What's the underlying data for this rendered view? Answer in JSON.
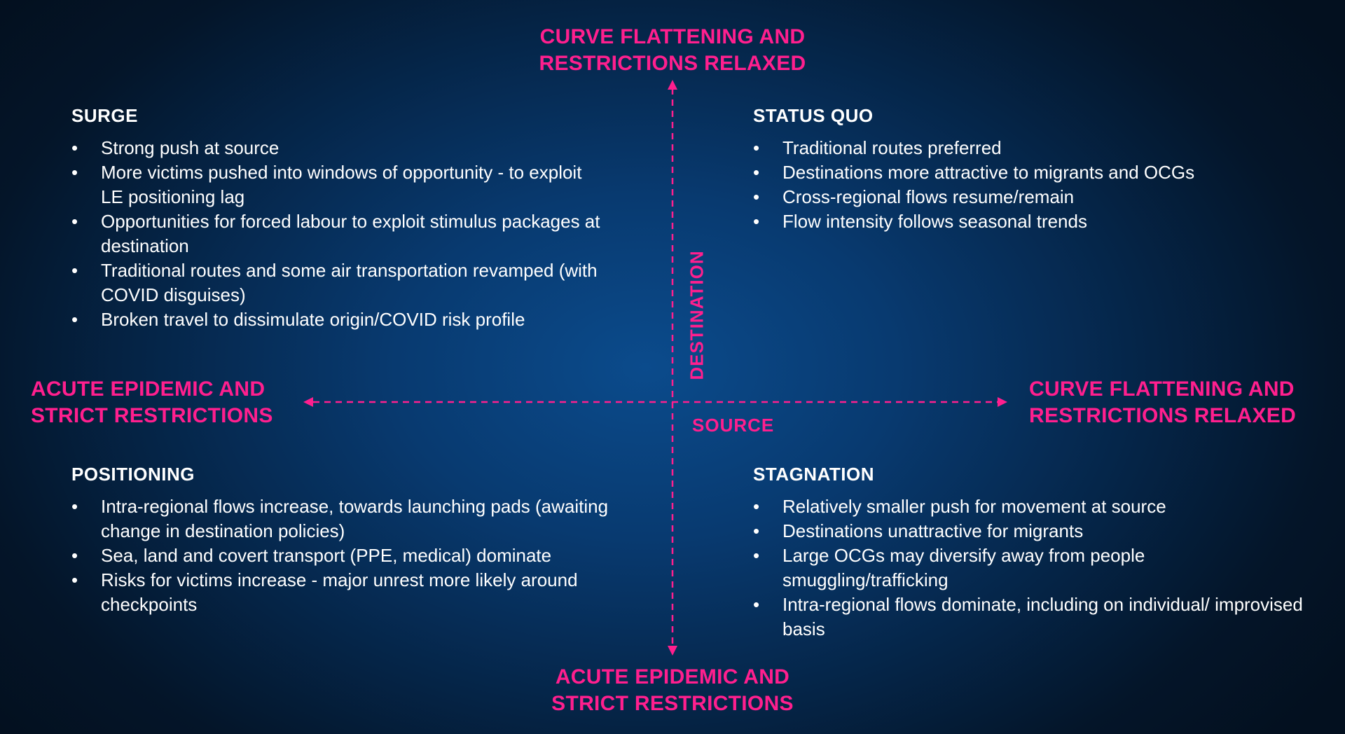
{
  "axes": {
    "top": [
      "CURVE FLATTENING AND",
      "RESTRICTIONS RELAXED"
    ],
    "bottom": [
      "ACUTE EPIDEMIC AND",
      "STRICT RESTRICTIONS"
    ],
    "left": [
      "ACUTE EPIDEMIC AND",
      "STRICT RESTRICTIONS"
    ],
    "right": [
      "CURVE FLATTENING AND",
      "RESTRICTIONS RELAXED"
    ],
    "vertical_name": "DESTINATION",
    "horizontal_name": "SOURCE"
  },
  "colors": {
    "accent": "#ff1f8e",
    "text": "#ffffff",
    "background_center": "#0b4b8c",
    "background_edge": "#03101f"
  },
  "bullet_glyph": "•",
  "quadrants": {
    "surge": {
      "title": "SURGE",
      "items": [
        "Strong push at source",
        "More victims pushed into windows of opportunity - to exploit LE positioning lag",
        "Opportunities for forced labour to exploit stimulus packages at destination",
        "Traditional routes and some air transportation revamped (with COVID disguises)",
        "Broken travel to dissimulate origin/COVID risk profile"
      ]
    },
    "status_quo": {
      "title": "STATUS QUO",
      "items": [
        "Traditional routes preferred",
        "Destinations more attractive to migrants and OCGs",
        "Cross-regional flows resume/remain",
        "Flow intensity follows seasonal trends"
      ]
    },
    "positioning": {
      "title": "POSITIONING",
      "items": [
        "Intra-regional flows increase, towards launching pads (awaiting change in destination policies)",
        "Sea, land and covert transport (PPE, medical) dominate",
        "Risks for victims increase - major unrest more likely around checkpoints"
      ]
    },
    "stagnation": {
      "title": "STAGNATION",
      "items": [
        "Relatively smaller push for movement at source",
        "Destinations unattractive for migrants",
        "Large OCGs may diversify away from people smuggling/trafficking",
        "Intra-regional flows dominate, including on individual/ improvised basis"
      ]
    }
  }
}
